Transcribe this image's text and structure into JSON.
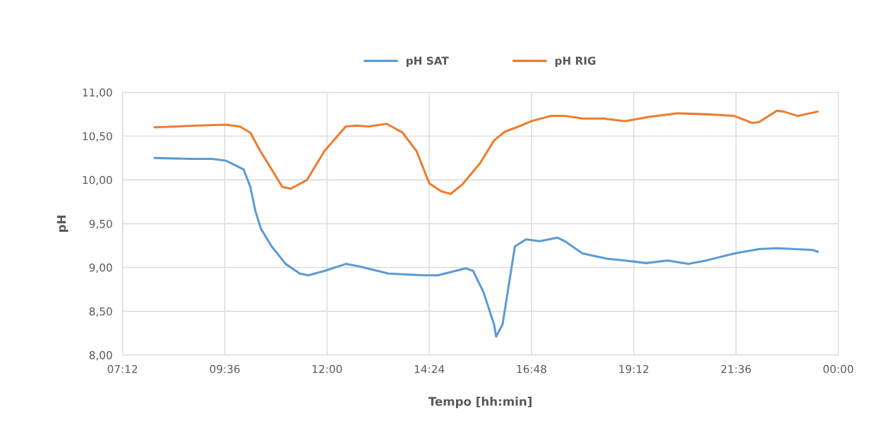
{
  "chart_data": {
    "type": "line",
    "xlabel": "Tempo [hh:min]",
    "ylabel": "pH",
    "legend": "top",
    "grid": true,
    "marker": "none",
    "line_style": "solid",
    "xlim": [
      7.2,
      24
    ],
    "xticks": [
      {
        "value": 7.2,
        "label": "07:12"
      },
      {
        "value": 9.6,
        "label": "09:36"
      },
      {
        "value": 12,
        "label": "12:00"
      },
      {
        "value": 14.4,
        "label": "14:24"
      },
      {
        "value": 16.8,
        "label": "16:48"
      },
      {
        "value": 19.2,
        "label": "19:12"
      },
      {
        "value": 21.6,
        "label": "21:36"
      },
      {
        "value": 24,
        "label": "00:00"
      }
    ],
    "ylim": [
      8,
      11
    ],
    "yticks": [
      {
        "value": 8,
        "label": "8,00"
      },
      {
        "value": 8.5,
        "label": "8,50"
      },
      {
        "value": 9,
        "label": "9,00"
      },
      {
        "value": 9.5,
        "label": "9,50"
      },
      {
        "value": 10,
        "label": "10,00"
      },
      {
        "value": 10.5,
        "label": "10,50"
      },
      {
        "value": 11,
        "label": "11,00"
      }
    ],
    "series": [
      {
        "name": "pH SAT",
        "color": "#5b9bd5",
        "x": [
          7.95,
          8.8,
          9.3,
          9.62,
          10.04,
          10.2,
          10.32,
          10.45,
          10.7,
          11.03,
          11.36,
          11.56,
          11.94,
          12.44,
          12.77,
          13.44,
          14.26,
          14.6,
          14.93,
          15.26,
          15.43,
          15.67,
          15.92,
          15.97,
          16.12,
          16.41,
          16.67,
          17.0,
          17.41,
          17.58,
          18.0,
          18.58,
          18.99,
          19.49,
          19.99,
          20.48,
          20.9,
          21.56,
          22.14,
          22.56,
          23.39,
          23.52
        ],
        "values": [
          10.25,
          10.24,
          10.24,
          10.22,
          10.12,
          9.92,
          9.64,
          9.44,
          9.24,
          9.04,
          8.93,
          8.91,
          8.96,
          9.04,
          9.01,
          8.93,
          8.91,
          8.91,
          8.95,
          8.99,
          8.96,
          8.72,
          8.35,
          8.21,
          8.35,
          9.24,
          9.32,
          9.3,
          9.34,
          9.3,
          9.16,
          9.1,
          9.08,
          9.05,
          9.08,
          9.04,
          9.08,
          9.16,
          9.21,
          9.22,
          9.2,
          9.18
        ]
      },
      {
        "name": "pH RIG",
        "color": "#ed7d31",
        "x": [
          7.95,
          8.96,
          9.62,
          9.95,
          10.2,
          10.42,
          10.7,
          10.95,
          11.15,
          11.53,
          11.94,
          12.44,
          12.69,
          12.97,
          13.4,
          13.77,
          14.1,
          14.4,
          14.68,
          14.9,
          15.18,
          15.59,
          15.92,
          16.17,
          16.5,
          16.79,
          17.25,
          17.58,
          18.0,
          18.49,
          18.99,
          19.57,
          20.23,
          20.9,
          21.56,
          21.98,
          22.14,
          22.56,
          22.72,
          23.05,
          23.52
        ],
        "values": [
          10.6,
          10.62,
          10.63,
          10.61,
          10.54,
          10.34,
          10.12,
          9.92,
          9.9,
          10.0,
          10.33,
          10.61,
          10.62,
          10.61,
          10.64,
          10.54,
          10.33,
          9.96,
          9.87,
          9.84,
          9.95,
          10.19,
          10.45,
          10.55,
          10.61,
          10.67,
          10.73,
          10.73,
          10.7,
          10.7,
          10.67,
          10.72,
          10.76,
          10.75,
          10.73,
          10.65,
          10.66,
          10.79,
          10.78,
          10.73,
          10.78
        ]
      }
    ]
  }
}
